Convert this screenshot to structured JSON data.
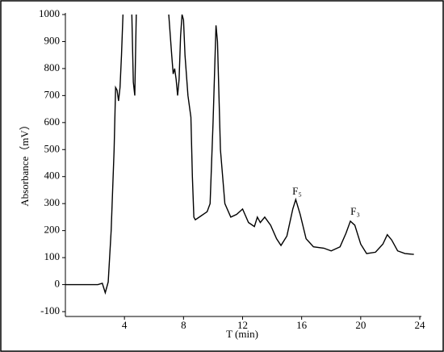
{
  "chart_data": {
    "type": "line",
    "x_label": "T (min)",
    "y_label": "Absorbance（mV）",
    "annotations": [
      "F₅",
      "F₃"
    ],
    "xlim": [
      0,
      24
    ],
    "xticks": [
      4,
      8,
      12,
      16,
      20,
      24
    ],
    "ylim": [
      -100,
      1000
    ],
    "yticks": [
      -100,
      0,
      100,
      200,
      300,
      400,
      500,
      600,
      700,
      800,
      900,
      1000
    ],
    "color": "#000000",
    "x": [
      0,
      2.2,
      2.5,
      2.7,
      2.9,
      3.1,
      3.3,
      3.4,
      3.5,
      3.6,
      3.7,
      3.8,
      3.9,
      4.2,
      4.5,
      4.6,
      4.7,
      4.8,
      5.5,
      7.0,
      7.2,
      7.3,
      7.4,
      7.5,
      7.6,
      7.7,
      7.8,
      7.9,
      8.0,
      8.1,
      8.3,
      8.5,
      8.6,
      8.7,
      8.8,
      9.2,
      9.6,
      9.8,
      10.0,
      10.2,
      10.3,
      10.5,
      10.8,
      11.2,
      11.6,
      12.0,
      12.4,
      12.8,
      13.0,
      13.2,
      13.5,
      13.9,
      14.3,
      14.6,
      15.0,
      15.4,
      15.6,
      15.9,
      16.3,
      16.8,
      17.5,
      18.0,
      18.6,
      19.0,
      19.3,
      19.6,
      20.0,
      20.4,
      21.0,
      21.5,
      21.8,
      22.1,
      22.5,
      23.0,
      23.6
    ],
    "values": [
      0,
      0,
      5,
      -30,
      10,
      200,
      500,
      730,
      720,
      680,
      730,
      850,
      1000,
      null,
      1000,
      750,
      700,
      1000,
      null,
      1000,
      850,
      780,
      800,
      760,
      700,
      760,
      920,
      1000,
      980,
      850,
      700,
      620,
      400,
      250,
      240,
      255,
      270,
      300,
      600,
      960,
      900,
      500,
      300,
      250,
      260,
      280,
      230,
      215,
      250,
      230,
      250,
      220,
      170,
      145,
      180,
      280,
      315,
      260,
      170,
      140,
      135,
      125,
      140,
      190,
      235,
      220,
      150,
      115,
      120,
      150,
      185,
      165,
      125,
      115,
      112
    ]
  }
}
